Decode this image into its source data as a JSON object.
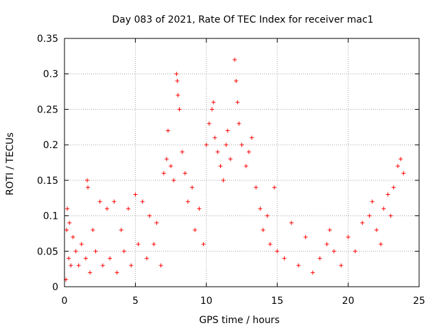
{
  "chart_data": {
    "type": "scatter",
    "title": "Day 083 of 2021, Rate Of TEC Index for receiver mac1",
    "xlabel": "GPS time / hours",
    "ylabel": "ROTI / TECUs",
    "xlim": [
      0,
      25
    ],
    "ylim": [
      0,
      0.35
    ],
    "xticks": [
      0,
      5,
      10,
      15,
      20,
      25
    ],
    "yticks": [
      0,
      0.05,
      0.1,
      0.15,
      0.2,
      0.25,
      0.3,
      0.35
    ],
    "xtick_labels": [
      "0",
      "5",
      "10",
      "15",
      "20",
      "25"
    ],
    "ytick_labels": [
      "0",
      "0.05",
      "0.1",
      "0.15",
      "0.2",
      "0.25",
      "0.3",
      "0.35"
    ],
    "grid": true,
    "marker": "+",
    "color": "#ff0000",
    "points": [
      [
        0.1,
        0.01
      ],
      [
        0.15,
        0.08
      ],
      [
        0.2,
        0.11
      ],
      [
        0.3,
        0.04
      ],
      [
        0.35,
        0.09
      ],
      [
        0.45,
        0.03
      ],
      [
        0.6,
        0.07
      ],
      [
        0.8,
        0.05
      ],
      [
        1.0,
        0.03
      ],
      [
        1.2,
        0.06
      ],
      [
        1.5,
        0.04
      ],
      [
        1.6,
        0.15
      ],
      [
        1.65,
        0.14
      ],
      [
        1.8,
        0.02
      ],
      [
        2.0,
        0.08
      ],
      [
        2.2,
        0.05
      ],
      [
        2.5,
        0.12
      ],
      [
        2.7,
        0.03
      ],
      [
        3.0,
        0.11
      ],
      [
        3.2,
        0.04
      ],
      [
        3.5,
        0.12
      ],
      [
        3.7,
        0.02
      ],
      [
        4.0,
        0.08
      ],
      [
        4.2,
        0.05
      ],
      [
        4.5,
        0.11
      ],
      [
        4.7,
        0.03
      ],
      [
        5.0,
        0.13
      ],
      [
        5.2,
        0.06
      ],
      [
        5.5,
        0.12
      ],
      [
        5.8,
        0.04
      ],
      [
        6.0,
        0.1
      ],
      [
        6.3,
        0.06
      ],
      [
        6.5,
        0.09
      ],
      [
        6.8,
        0.03
      ],
      [
        7.0,
        0.16
      ],
      [
        7.2,
        0.18
      ],
      [
        7.3,
        0.22
      ],
      [
        7.5,
        0.17
      ],
      [
        7.7,
        0.15
      ],
      [
        7.9,
        0.3
      ],
      [
        7.95,
        0.29
      ],
      [
        8.0,
        0.27
      ],
      [
        8.1,
        0.25
      ],
      [
        8.3,
        0.19
      ],
      [
        8.5,
        0.16
      ],
      [
        8.7,
        0.12
      ],
      [
        9.0,
        0.14
      ],
      [
        9.2,
        0.08
      ],
      [
        9.5,
        0.11
      ],
      [
        9.8,
        0.06
      ],
      [
        10.0,
        0.2
      ],
      [
        10.2,
        0.23
      ],
      [
        10.4,
        0.25
      ],
      [
        10.5,
        0.26
      ],
      [
        10.6,
        0.21
      ],
      [
        10.8,
        0.19
      ],
      [
        11.0,
        0.17
      ],
      [
        11.2,
        0.15
      ],
      [
        11.4,
        0.2
      ],
      [
        11.5,
        0.22
      ],
      [
        11.7,
        0.18
      ],
      [
        12.0,
        0.32
      ],
      [
        12.1,
        0.29
      ],
      [
        12.2,
        0.26
      ],
      [
        12.3,
        0.23
      ],
      [
        12.5,
        0.2
      ],
      [
        12.8,
        0.17
      ],
      [
        13.0,
        0.19
      ],
      [
        13.2,
        0.21
      ],
      [
        13.5,
        0.14
      ],
      [
        13.8,
        0.11
      ],
      [
        14.0,
        0.08
      ],
      [
        14.3,
        0.1
      ],
      [
        14.5,
        0.06
      ],
      [
        14.8,
        0.14
      ],
      [
        15.0,
        0.05
      ],
      [
        15.5,
        0.04
      ],
      [
        16.0,
        0.09
      ],
      [
        16.5,
        0.03
      ],
      [
        17.0,
        0.07
      ],
      [
        17.5,
        0.02
      ],
      [
        18.0,
        0.04
      ],
      [
        18.5,
        0.06
      ],
      [
        18.7,
        0.08
      ],
      [
        19.0,
        0.05
      ],
      [
        19.5,
        0.03
      ],
      [
        20.0,
        0.07
      ],
      [
        20.5,
        0.05
      ],
      [
        21.0,
        0.09
      ],
      [
        21.5,
        0.1
      ],
      [
        21.7,
        0.12
      ],
      [
        22.0,
        0.08
      ],
      [
        22.3,
        0.06
      ],
      [
        22.5,
        0.11
      ],
      [
        22.8,
        0.13
      ],
      [
        23.0,
        0.1
      ],
      [
        23.2,
        0.14
      ],
      [
        23.5,
        0.17
      ],
      [
        23.7,
        0.18
      ],
      [
        23.9,
        0.16
      ]
    ]
  }
}
